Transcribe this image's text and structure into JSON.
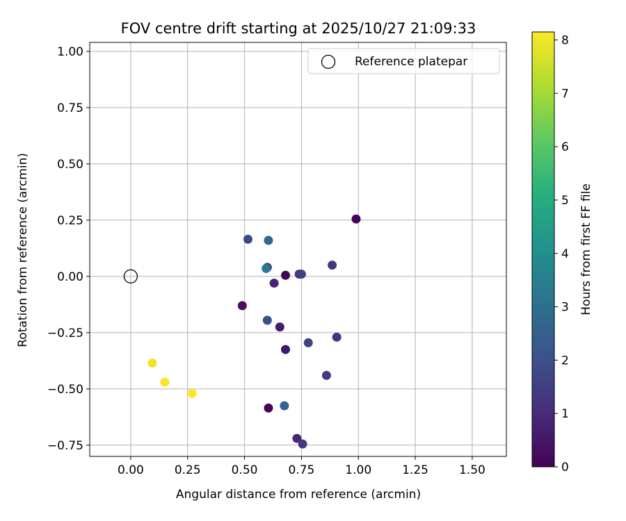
{
  "chart_data": {
    "type": "scatter",
    "title": "FOV centre drift starting at 2025/10/27 21:09:33",
    "xlabel": "Angular distance from reference (arcmin)",
    "ylabel": "Rotation from reference (arcmin)",
    "xlim": [
      -0.18,
      1.65
    ],
    "ylim": [
      -0.8,
      1.04
    ],
    "xticks": [
      0.0,
      0.25,
      0.5,
      0.75,
      1.0,
      1.25,
      1.5
    ],
    "xtick_labels": [
      "0.00",
      "0.25",
      "0.50",
      "0.75",
      "1.00",
      "1.25",
      "1.50"
    ],
    "yticks": [
      -0.75,
      -0.5,
      -0.25,
      0.0,
      0.25,
      0.5,
      0.75,
      1.0
    ],
    "ytick_labels": [
      "−0.75",
      "−0.50",
      "−0.25",
      "0.00",
      "0.25",
      "0.50",
      "0.75",
      "1.00"
    ],
    "grid": true,
    "legend": {
      "position": "top-right",
      "entries": [
        "Reference platepar"
      ]
    },
    "reference_point": {
      "x": 0.0,
      "y": 0.0,
      "label": "Reference platepar"
    },
    "colorbar": {
      "label": "Hours from first FF file",
      "min": 0,
      "max": 8.15,
      "ticks": [
        0,
        1,
        2,
        3,
        4,
        5,
        6,
        7,
        8
      ],
      "tick_labels": [
        "0",
        "1",
        "2",
        "3",
        "4",
        "5",
        "6",
        "7",
        "8"
      ],
      "colormap": "viridis"
    },
    "points": [
      {
        "x": 0.99,
        "y": 0.255,
        "hours": 0.05
      },
      {
        "x": 0.515,
        "y": 0.165,
        "hours": 1.8
      },
      {
        "x": 0.605,
        "y": 0.16,
        "hours": 2.7
      },
      {
        "x": 0.6,
        "y": 0.04,
        "hours": 1.0
      },
      {
        "x": 0.595,
        "y": 0.035,
        "hours": 3.3
      },
      {
        "x": 0.68,
        "y": 0.005,
        "hours": 0.1
      },
      {
        "x": 0.74,
        "y": 0.01,
        "hours": 1.2
      },
      {
        "x": 0.75,
        "y": 0.01,
        "hours": 1.5
      },
      {
        "x": 0.885,
        "y": 0.05,
        "hours": 1.3
      },
      {
        "x": 0.63,
        "y": -0.03,
        "hours": 0.8
      },
      {
        "x": 0.49,
        "y": -0.13,
        "hours": 0.3
      },
      {
        "x": 0.6,
        "y": -0.195,
        "hours": 1.9
      },
      {
        "x": 0.655,
        "y": -0.225,
        "hours": 0.6
      },
      {
        "x": 0.78,
        "y": -0.295,
        "hours": 1.6
      },
      {
        "x": 0.905,
        "y": -0.27,
        "hours": 1.3
      },
      {
        "x": 0.68,
        "y": -0.325,
        "hours": 0.5
      },
      {
        "x": 0.86,
        "y": -0.44,
        "hours": 1.4
      },
      {
        "x": 0.675,
        "y": -0.575,
        "hours": 2.6
      },
      {
        "x": 0.605,
        "y": -0.585,
        "hours": 0.1
      },
      {
        "x": 0.73,
        "y": -0.72,
        "hours": 0.9
      },
      {
        "x": 0.755,
        "y": -0.745,
        "hours": 1.3
      },
      {
        "x": 0.095,
        "y": -0.385,
        "hours": 8.0
      },
      {
        "x": 0.15,
        "y": -0.47,
        "hours": 8.1
      },
      {
        "x": 0.27,
        "y": -0.52,
        "hours": 8.15
      }
    ]
  }
}
